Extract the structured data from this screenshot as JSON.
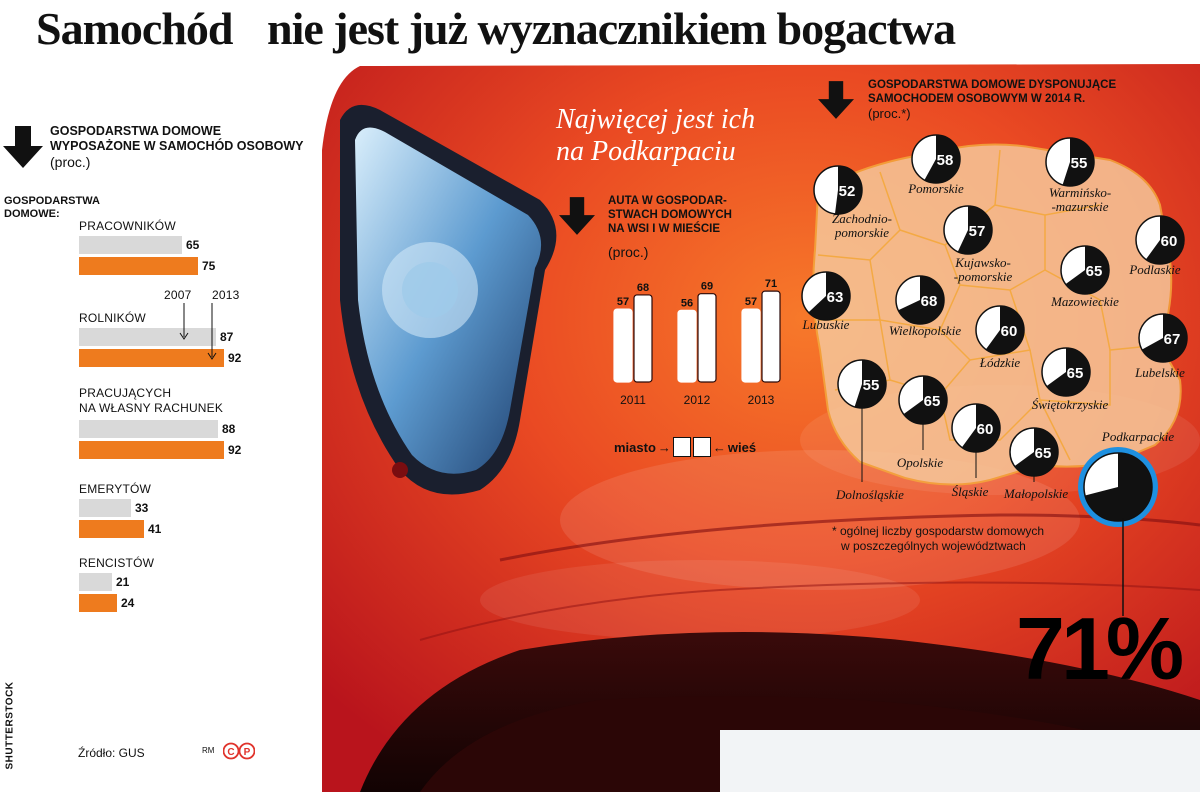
{
  "title": {
    "part1": "Samochód",
    "part2": "nie jest już wyznacznikiem bogactwa"
  },
  "left_panel": {
    "header_line1": "GOSPODARSTWA DOMOWE",
    "header_line2": "WYPOSAŻONE W SAMOCHÓD OSOBOWY",
    "unit": "(proc.)",
    "group_label_line1": "GOSPODARSTWA",
    "group_label_line2": "DOMOWE:",
    "year_a": "2007",
    "year_b": "2013"
  },
  "middle_panel": {
    "headline_line1": "Najwięcej jest ich",
    "headline_line2": "na Podkarpaciu",
    "header_line1": "AUTA W GOSPODAR-",
    "header_line2": "STWACH DOMOWYCH",
    "header_line3": "NA WSI I W MIEŚCIE",
    "unit": "(proc.)",
    "legend_city": "miasto",
    "legend_village": "wieś"
  },
  "map_panel": {
    "header_line1": "GOSPODARSTWA DOMOWE DYSPONUJĄCE",
    "header_line2": "SAMOCHODEM OSOBOWYM W 2014 R.",
    "unit": "(proc.*)",
    "footnote_line1": "* ogólnej liczby gospodarstw domowych",
    "footnote_line2": "w poszczególnych województwach",
    "highlight": "71%"
  },
  "source": "Źródło: GUS",
  "credit_rm": "RM",
  "credit_photo": "SHUTTERSTOCK",
  "colors": {
    "accent": "#ee7b1e",
    "gray": "#d9d9d9",
    "car_red": "#e2352a",
    "map_fill": "#f6c79a",
    "podkarpackie_ring": "#1e90e0"
  },
  "chart_data": [
    {
      "type": "bar",
      "title": "GOSPODARSTWA DOMOWE WYPOSAŻONE W SAMOCHÓD OSOBOWY",
      "unit": "(proc.)",
      "categories": [
        {
          "line1": "PRACOWNIKÓW",
          "line2": ""
        },
        {
          "line1": "ROLNIKÓW",
          "line2": ""
        },
        {
          "line1": "PRACUJĄCYCH",
          "line2": "NA WŁASNY RACHUNEK"
        },
        {
          "line1": "EMERYTÓW",
          "line2": ""
        },
        {
          "line1": "RENCISTÓW",
          "line2": ""
        }
      ],
      "series": [
        {
          "name": "2007",
          "values": [
            65,
            87,
            88,
            33,
            21
          ]
        },
        {
          "name": "2013",
          "values": [
            75,
            92,
            92,
            41,
            24
          ]
        }
      ],
      "xlim": [
        0,
        100
      ]
    },
    {
      "type": "bar",
      "title": "AUTA W GOSPODARSTWACH DOMOWYCH NA WSI I W MIEŚCIE",
      "unit": "(proc.)",
      "categories": [
        "2011",
        "2012",
        "2013"
      ],
      "series": [
        {
          "name": "miasto",
          "values": [
            57,
            56,
            57
          ]
        },
        {
          "name": "wieś",
          "values": [
            68,
            69,
            71
          ]
        }
      ]
    },
    {
      "type": "pie",
      "title": "GOSPODARSTWA DOMOWE DYSPONUJĄCE SAMOCHODEM OSOBOWYM W 2014 R.",
      "unit": "(proc.*)",
      "regions": [
        {
          "name": "Zachodnio-pomorskie",
          "value": 52
        },
        {
          "name": "Pomorskie",
          "value": 58
        },
        {
          "name": "Warmińsko--mazurskie",
          "value": 55
        },
        {
          "name": "Podlaskie",
          "value": 60
        },
        {
          "name": "Kujawsko--pomorskie",
          "value": 57
        },
        {
          "name": "Mazowieckie",
          "value": 65
        },
        {
          "name": "Lubuskie",
          "value": 63
        },
        {
          "name": "Wielkopolskie",
          "value": 68
        },
        {
          "name": "Łódzkie",
          "value": 60
        },
        {
          "name": "Lubelskie",
          "value": 67
        },
        {
          "name": "Dolnośląskie",
          "value": 55
        },
        {
          "name": "Opolskie",
          "value": 65
        },
        {
          "name": "Śląskie",
          "value": 60
        },
        {
          "name": "Świętokrzyskie",
          "value": 65
        },
        {
          "name": "Małopolskie",
          "value": 65
        },
        {
          "name": "Podkarpackie",
          "value": 71
        }
      ]
    }
  ]
}
